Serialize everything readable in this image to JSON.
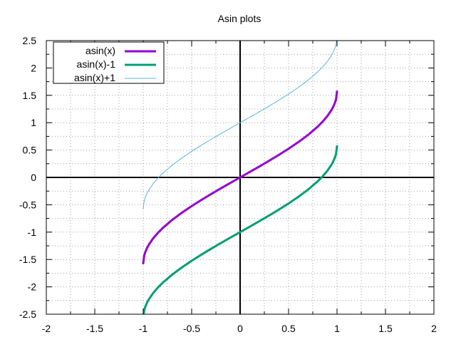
{
  "chart_data": {
    "type": "line",
    "title": "Asin plots",
    "xlabel": "",
    "ylabel": "",
    "xlim": [
      -2,
      2
    ],
    "ylim": [
      -2.5,
      2.5
    ],
    "x_major_ticks": [
      "-2",
      "-1.5",
      "-1",
      "-0.5",
      "0",
      "0.5",
      "1",
      "1.5",
      "2"
    ],
    "y_major_ticks": [
      "-2.5",
      "-2",
      "-1.5",
      "-1",
      "-0.5",
      "0",
      "0.5",
      "1",
      "1.5",
      "2",
      "2.5"
    ],
    "grid": true,
    "grid_style": "dotted",
    "legend_position": "top-left",
    "axes_zero_lines": true,
    "series": [
      {
        "name": "asin(x)",
        "color": "#9400d3",
        "style": "thick",
        "offset": 0,
        "x": [
          -1,
          -0.99,
          -0.98,
          -0.96,
          -0.94,
          -0.9,
          -0.85,
          -0.8,
          -0.7,
          -0.6,
          -0.5,
          -0.4,
          -0.3,
          -0.2,
          -0.1,
          0,
          0.1,
          0.2,
          0.3,
          0.4,
          0.5,
          0.6,
          0.7,
          0.8,
          0.85,
          0.9,
          0.94,
          0.96,
          0.98,
          0.99,
          1
        ],
        "y": [
          -1.571,
          -1.429,
          -1.371,
          -1.287,
          -1.224,
          -1.12,
          -1.016,
          -0.927,
          -0.775,
          -0.644,
          -0.524,
          -0.412,
          -0.305,
          -0.201,
          -0.1,
          0,
          0.1,
          0.201,
          0.305,
          0.412,
          0.524,
          0.644,
          0.775,
          0.927,
          1.016,
          1.12,
          1.224,
          1.287,
          1.371,
          1.429,
          1.571
        ]
      },
      {
        "name": "asin(x)-1",
        "color": "#009e73",
        "style": "thick",
        "offset": -1,
        "x": [
          -1,
          -0.99,
          -0.98,
          -0.96,
          -0.94,
          -0.9,
          -0.85,
          -0.8,
          -0.7,
          -0.6,
          -0.5,
          -0.4,
          -0.3,
          -0.2,
          -0.1,
          0,
          0.1,
          0.2,
          0.3,
          0.4,
          0.5,
          0.6,
          0.7,
          0.8,
          0.85,
          0.9,
          0.94,
          0.96,
          0.98,
          0.99,
          1
        ],
        "y": [
          -2.571,
          -2.429,
          -2.371,
          -2.287,
          -2.224,
          -2.12,
          -2.016,
          -1.927,
          -1.775,
          -1.644,
          -1.524,
          -1.412,
          -1.305,
          -1.201,
          -1.1,
          -1,
          -0.9,
          -0.799,
          -0.695,
          -0.588,
          -0.476,
          -0.356,
          -0.225,
          -0.073,
          0.016,
          0.12,
          0.224,
          0.287,
          0.371,
          0.429,
          0.571
        ]
      },
      {
        "name": "asin(x)+1",
        "color": "#56b4e9",
        "style": "thin",
        "offset": 1,
        "x": [
          -1,
          -0.99,
          -0.98,
          -0.96,
          -0.94,
          -0.9,
          -0.85,
          -0.8,
          -0.7,
          -0.6,
          -0.5,
          -0.4,
          -0.3,
          -0.2,
          -0.1,
          0,
          0.1,
          0.2,
          0.3,
          0.4,
          0.5,
          0.6,
          0.7,
          0.8,
          0.85,
          0.9,
          0.94,
          0.96,
          0.98,
          0.99,
          1
        ],
        "y": [
          -0.571,
          -0.429,
          -0.371,
          -0.287,
          -0.224,
          -0.12,
          -0.016,
          0.073,
          0.225,
          0.356,
          0.476,
          0.588,
          0.695,
          0.799,
          0.9,
          1,
          1.1,
          1.201,
          1.305,
          1.412,
          1.524,
          1.644,
          1.775,
          1.927,
          2.016,
          2.12,
          2.224,
          2.287,
          2.371,
          2.429,
          2.571
        ]
      }
    ]
  }
}
